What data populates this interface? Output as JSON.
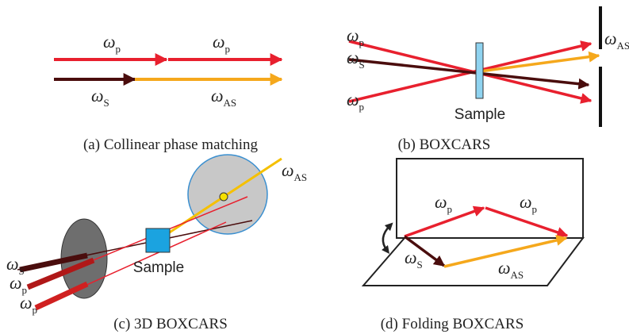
{
  "panels": [
    {
      "caption": "(a) Collinear phase matching",
      "labels": [
        {
          "symbol": "ω",
          "sub": "p"
        },
        {
          "symbol": "ω",
          "sub": "p"
        },
        {
          "symbol": "ω",
          "sub": "S"
        },
        {
          "symbol": "ω",
          "sub": "AS"
        }
      ]
    },
    {
      "caption": "(b) BOXCARS",
      "sample_label": "Sample",
      "labels": [
        {
          "symbol": "ω",
          "sub": "p"
        },
        {
          "symbol": "ω",
          "sub": "S"
        },
        {
          "symbol": "ω",
          "sub": "p"
        },
        {
          "symbol": "ω",
          "sub": "AS"
        }
      ]
    },
    {
      "caption": "(c) 3D BOXCARS",
      "sample_label": "Sample",
      "labels": [
        {
          "symbol": "ω",
          "sub": "S"
        },
        {
          "symbol": "ω",
          "sub": "p"
        },
        {
          "symbol": "ω",
          "sub": "p"
        },
        {
          "symbol": "ω",
          "sub": "AS"
        }
      ]
    },
    {
      "caption": "(d) Folding BOXCARS",
      "labels": [
        {
          "symbol": "ω",
          "sub": "p"
        },
        {
          "symbol": "ω",
          "sub": "p"
        },
        {
          "symbol": "ω",
          "sub": "S"
        },
        {
          "symbol": "ω",
          "sub": "AS"
        }
      ]
    }
  ]
}
